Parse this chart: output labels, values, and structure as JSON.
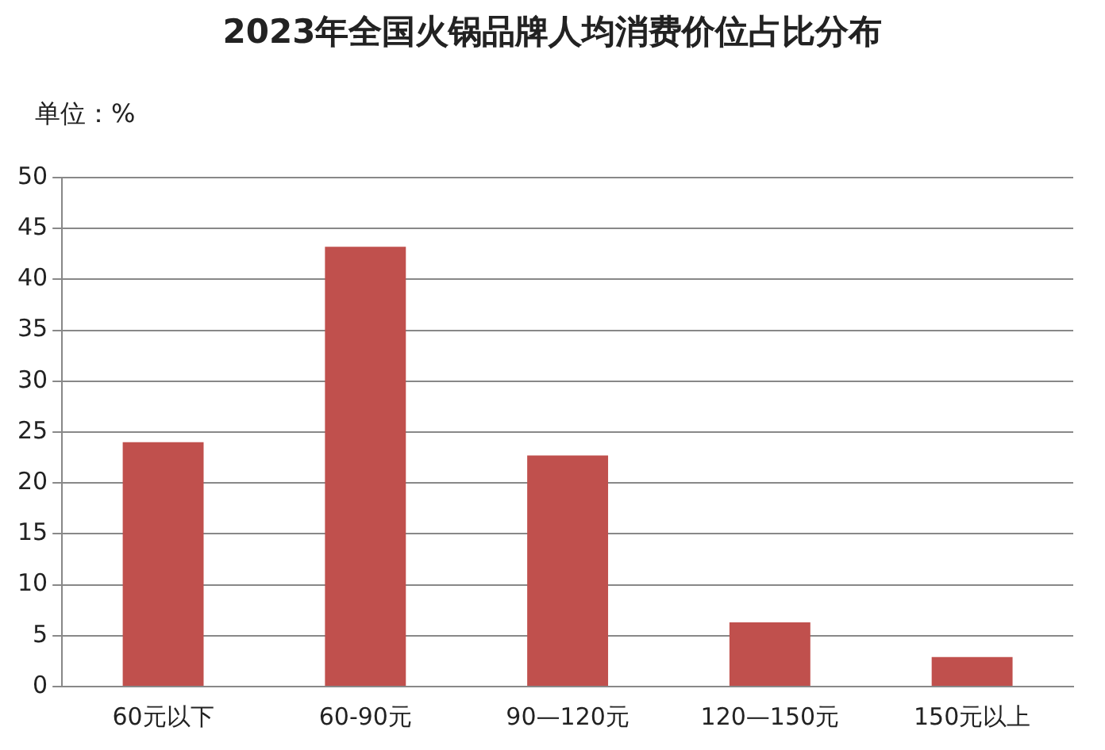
{
  "chart_data": {
    "type": "bar",
    "title": "2023年全国火锅品牌人均消费价位占比分布",
    "ylabel": "单位：%",
    "categories": [
      "60元以下",
      "60-90元",
      "90—120元",
      "120—150元",
      "150元以上"
    ],
    "values": [
      24,
      43.2,
      22.7,
      6.3,
      2.9
    ],
    "color": "#c0504d",
    "ylim": [
      0,
      50
    ],
    "yticks": [
      0,
      5,
      10,
      15,
      20,
      25,
      30,
      35,
      40,
      45,
      50
    ],
    "grid": "y",
    "legend": false
  }
}
